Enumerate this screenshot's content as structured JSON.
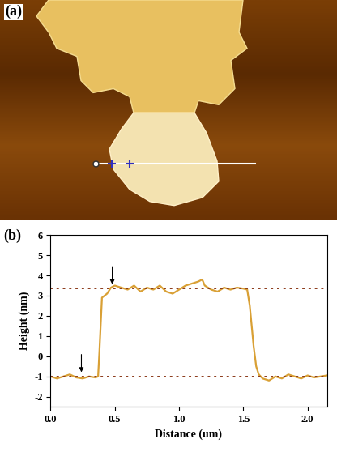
{
  "chart_data": [
    {
      "type": "image",
      "label": "(a)"
    },
    {
      "type": "line",
      "label": "(b)",
      "x_label": "Distance (um)",
      "y_label": "Height (nm)",
      "x": [
        0.0,
        0.05,
        0.1,
        0.15,
        0.2,
        0.25,
        0.3,
        0.35,
        0.37,
        0.38,
        0.4,
        0.42,
        0.44,
        0.47,
        0.5,
        0.55,
        0.6,
        0.65,
        0.7,
        0.75,
        0.8,
        0.85,
        0.9,
        0.95,
        1.0,
        1.05,
        1.1,
        1.15,
        1.18,
        1.2,
        1.25,
        1.3,
        1.35,
        1.4,
        1.45,
        1.5,
        1.53,
        1.55,
        1.58,
        1.6,
        1.62,
        1.65,
        1.7,
        1.75,
        1.8,
        1.85,
        1.9,
        1.95,
        2.0,
        2.05,
        2.1,
        2.15
      ],
      "values": [
        -1.0,
        -1.1,
        -1.0,
        -0.9,
        -1.05,
        -1.1,
        -1.0,
        -1.05,
        -1.0,
        0.2,
        2.9,
        3.0,
        3.1,
        3.4,
        3.5,
        3.4,
        3.3,
        3.5,
        3.2,
        3.4,
        3.3,
        3.5,
        3.2,
        3.1,
        3.3,
        3.5,
        3.6,
        3.7,
        3.8,
        3.5,
        3.3,
        3.2,
        3.4,
        3.3,
        3.4,
        3.35,
        3.3,
        2.5,
        0.5,
        -0.5,
        -0.9,
        -1.1,
        -1.2,
        -1.0,
        -1.1,
        -0.9,
        -1.0,
        -1.1,
        -0.95,
        -1.05,
        -1.0,
        -0.95
      ],
      "color": "#d9a035",
      "reference_lines": [
        3.35,
        -1.0
      ],
      "arrows": [
        {
          "x": 0.24,
          "y": -0.9
        },
        {
          "x": 0.48,
          "y": 3.45
        }
      ],
      "xlim": [
        0,
        2.15
      ],
      "xticks": [
        {
          "value": 0,
          "label": "0.0"
        },
        {
          "value": 0.5,
          "label": "0.5"
        },
        {
          "value": 1.0,
          "label": "1.0"
        },
        {
          "value": 1.5,
          "label": "1.5"
        },
        {
          "value": 2.0,
          "label": "2.0"
        }
      ],
      "ylim": [
        -2.5,
        6
      ],
      "yticks": [
        -2,
        -1,
        0,
        1,
        2,
        3,
        4,
        5,
        6
      ],
      "grid": false
    }
  ]
}
